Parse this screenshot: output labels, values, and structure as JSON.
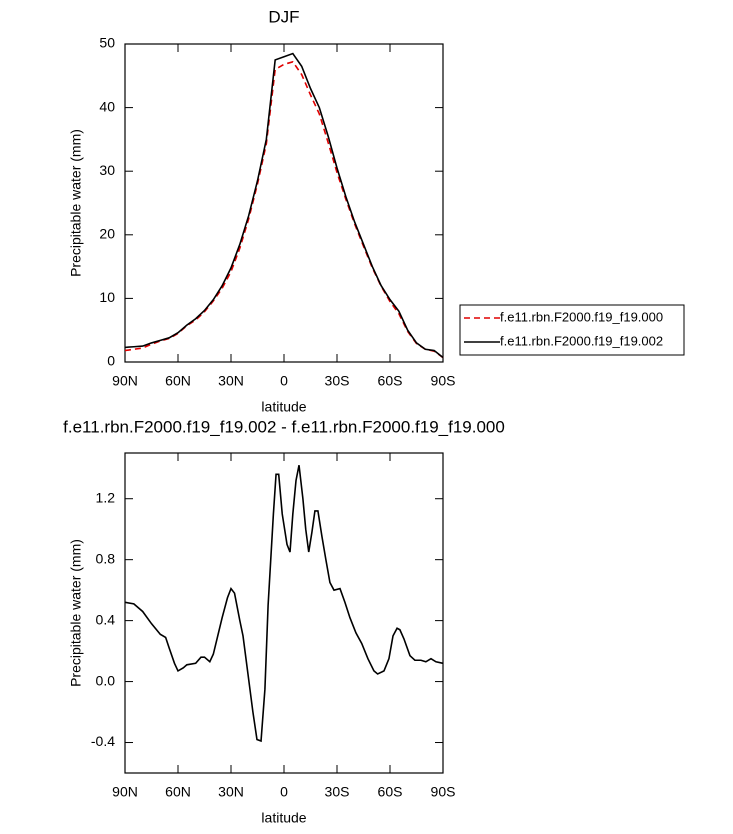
{
  "chart_data": [
    {
      "type": "line",
      "title": "DJF",
      "x_label": "latitude",
      "y_label": "Precipitable water (mm)",
      "x": [
        90,
        85,
        80,
        75,
        70,
        65,
        60,
        55,
        50,
        45,
        40,
        35,
        30,
        25,
        20,
        15,
        10,
        5,
        0,
        -5,
        -10,
        -15,
        -20,
        -25,
        -30,
        -35,
        -40,
        -45,
        -50,
        -55,
        -60,
        -65,
        -70,
        -75,
        -80,
        -85,
        -90
      ],
      "xlim": [
        90,
        -90
      ],
      "xticks": [
        {
          "value": 90,
          "label": "90N"
        },
        {
          "value": 60,
          "label": "60N"
        },
        {
          "value": 30,
          "label": "30N"
        },
        0,
        {
          "value": -30,
          "label": "30S"
        },
        {
          "value": -60,
          "label": "60S"
        },
        {
          "value": -90,
          "label": "90S"
        }
      ],
      "ylim": [
        0,
        50
      ],
      "yticks": [
        0,
        10,
        20,
        30,
        40,
        50
      ],
      "legend": "right",
      "series": [
        {
          "name": "f.e11.rbn.F2000.f19_f19.000",
          "color": "#e00000",
          "line_style": "dashed",
          "values": [
            1.8,
            2.0,
            2.2,
            2.8,
            3.3,
            3.7,
            4.5,
            5.7,
            6.6,
            7.9,
            9.6,
            11.6,
            14.2,
            17.9,
            22.5,
            28,
            34.3,
            46,
            46.8,
            47.2,
            45.2,
            42,
            39,
            34.5,
            29.8,
            25.6,
            21.7,
            18.2,
            14.8,
            11.9,
            9.5,
            7.6,
            4.8,
            2.9,
            2.0,
            1.7,
            0.7
          ]
        },
        {
          "name": "f.e11.rbn.F2000.f19_f19.002",
          "color": "#000000",
          "line_style": "solid",
          "values": [
            2.3,
            2.4,
            2.5,
            3.0,
            3.4,
            3.8,
            4.6,
            5.8,
            6.8,
            8.1,
            9.8,
            12,
            14.8,
            18.5,
            23,
            28.5,
            35,
            47.5,
            48,
            48.5,
            46.5,
            43,
            40,
            35.5,
            30.5,
            26,
            22,
            18.5,
            15,
            12,
            9.8,
            8,
            5,
            3,
            2,
            1.8,
            0.7
          ]
        }
      ]
    },
    {
      "type": "line",
      "title": "f.e11.rbn.F2000.f19_f19.002 - f.e11.rbn.F2000.f19_f19.000",
      "x_label": "latitude",
      "y_label": "Precipitable water (mm)",
      "x": [
        90,
        85,
        80,
        75,
        70,
        67,
        65,
        62,
        60,
        57,
        55,
        50,
        47,
        45,
        42,
        40,
        35,
        32,
        30,
        28,
        25,
        23.2,
        20.4,
        17.6,
        15.3,
        13,
        10.8,
        9,
        6,
        4.5,
        3,
        1,
        -1.7,
        -3.4,
        -5,
        -6.8,
        -8.5,
        -10.7,
        -12.3,
        -14,
        -15.8,
        -17.5,
        -19.2,
        -21.5,
        -23.7,
        -26,
        -28.3,
        -31.7,
        -34.5,
        -37.3,
        -40.7,
        -44,
        -47.5,
        -50.9,
        -53,
        -56.6,
        -59.4,
        -61.7,
        -64,
        -65.6,
        -67.9,
        -71.3,
        -74.1,
        -77.5,
        -80.3,
        -83.2,
        -86,
        -90
      ],
      "xlim": [
        90,
        -90
      ],
      "xticks": [
        {
          "value": 90,
          "label": "90N"
        },
        {
          "value": 60,
          "label": "60N"
        },
        {
          "value": 30,
          "label": "30N"
        },
        0,
        {
          "value": -30,
          "label": "30S"
        },
        {
          "value": -60,
          "label": "60S"
        },
        {
          "value": -90,
          "label": "90S"
        }
      ],
      "ylim": [
        -0.6,
        1.5
      ],
      "yticks": [
        -0.4,
        {
          "value": 0,
          "label": "0.0"
        },
        0.4,
        0.8,
        1.2
      ],
      "series": [
        {
          "color": "#000000",
          "line_style": "solid",
          "values": [
            0.52,
            0.51,
            0.46,
            0.38,
            0.31,
            0.29,
            0.22,
            0.12,
            0.07,
            0.09,
            0.11,
            0.12,
            0.16,
            0.16,
            0.13,
            0.18,
            0.42,
            0.55,
            0.61,
            0.58,
            0.4,
            0.3,
            0.05,
            -0.2,
            -0.38,
            -0.39,
            -0.05,
            0.5,
            1.1,
            1.36,
            1.36,
            1.1,
            0.9,
            0.85,
            1.1,
            1.32,
            1.42,
            1.2,
            1.0,
            0.85,
            0.98,
            1.12,
            1.12,
            0.95,
            0.8,
            0.65,
            0.6,
            0.61,
            0.52,
            0.42,
            0.32,
            0.25,
            0.15,
            0.07,
            0.05,
            0.07,
            0.15,
            0.3,
            0.35,
            0.34,
            0.28,
            0.17,
            0.14,
            0.14,
            0.13,
            0.15,
            0.13,
            0.12
          ]
        }
      ]
    }
  ]
}
